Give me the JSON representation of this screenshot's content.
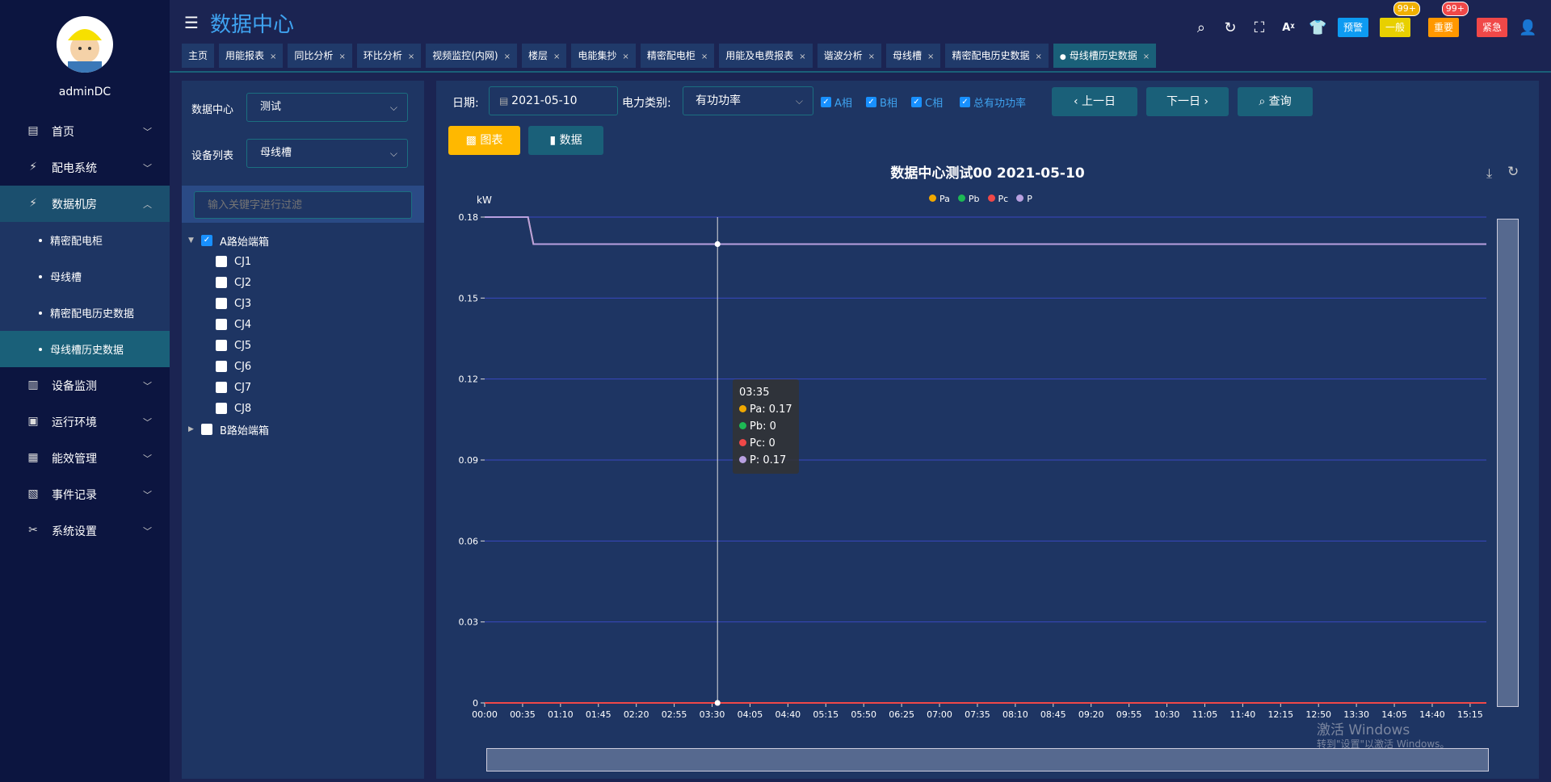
{
  "sidebar": {
    "username": "adminDC",
    "items": [
      {
        "label": "首页",
        "icon": "monitor-icon"
      },
      {
        "label": "配电系统",
        "icon": "lightning-icon"
      },
      {
        "label": "数据机房",
        "icon": "lightning-icon",
        "open": true,
        "children": [
          {
            "label": "精密配电柜"
          },
          {
            "label": "母线槽"
          },
          {
            "label": "精密配电历史数据"
          },
          {
            "label": "母线槽历史数据",
            "active": true
          }
        ]
      },
      {
        "label": "设备监测",
        "icon": "bar-chart-icon"
      },
      {
        "label": "运行环境",
        "icon": "camera-icon"
      },
      {
        "label": "能效管理",
        "icon": "factory-icon"
      },
      {
        "label": "事件记录",
        "icon": "building-icon"
      },
      {
        "label": "系统设置",
        "icon": "tools-icon"
      }
    ]
  },
  "header": {
    "title": "数据中心",
    "alerts": [
      {
        "label": "预警",
        "color": "#0d9bf2"
      },
      {
        "label": "一般",
        "color": "#e8d000",
        "count": "99+",
        "count_color": "#f0b000"
      },
      {
        "label": "重要",
        "color": "#ff9800",
        "count": "99+",
        "count_color": "#f04848"
      },
      {
        "label": "紧急",
        "color": "#f04848"
      }
    ]
  },
  "tabs": [
    "主页",
    "用能报表",
    "同比分析",
    "环比分析",
    "视频监控(内网)",
    "楼层",
    "电能集抄",
    "精密配电柜",
    "用能及电费报表",
    "谐波分析",
    "母线槽",
    "精密配电历史数据",
    "母线槽历史数据"
  ],
  "active_tab": "母线槽历史数据",
  "left": {
    "dc_label": "数据中心",
    "dc_value": "测试",
    "dev_label": "设备列表",
    "dev_value": "母线槽",
    "filter_placeholder": "输入关键字进行过滤",
    "tree": [
      {
        "label": "A路始端箱",
        "checked": true,
        "expanded": true,
        "children": [
          "CJ1",
          "CJ2",
          "CJ3",
          "CJ4",
          "CJ5",
          "CJ6",
          "CJ7",
          "CJ8"
        ]
      },
      {
        "label": "B路始端箱",
        "checked": false,
        "expanded": false
      }
    ]
  },
  "toolbar": {
    "date_label": "日期:",
    "date_value": "2021-05-10",
    "type_label": "电力类别:",
    "type_value": "有功功率",
    "checks": [
      "A相",
      "B相",
      "C相",
      "总有功功率"
    ],
    "prev": "上一日",
    "next": "下一日",
    "query": "查询",
    "chart_btn": "图表",
    "data_btn": "数据"
  },
  "chart_data": {
    "type": "line",
    "title": "数据中心测试00  2021-05-10",
    "ylabel": "kW",
    "ylim": [
      0,
      0.18
    ],
    "yticks": [
      "0",
      "0.03",
      "0.06",
      "0.09",
      "0.12",
      "0.15",
      "0.18"
    ],
    "xticks": [
      "00:00",
      "00:35",
      "01:10",
      "01:45",
      "02:20",
      "02:55",
      "03:30",
      "04:05",
      "04:40",
      "05:15",
      "05:50",
      "06:25",
      "07:00",
      "07:35",
      "08:10",
      "08:45",
      "09:20",
      "09:55",
      "10:30",
      "11:05",
      "11:40",
      "12:15",
      "12:50",
      "13:30",
      "14:05",
      "14:40",
      "15:15"
    ],
    "x_step_minutes": 5,
    "points": 186,
    "grid": true,
    "legend": "top-center",
    "series": [
      {
        "name": "Pa",
        "color": "#f0a800",
        "runs": [
          {
            "value": 0.18,
            "count": 9
          },
          {
            "value": 0.17,
            "count": 177
          }
        ]
      },
      {
        "name": "Pb",
        "color": "#1db954",
        "runs": [
          {
            "value": 0,
            "count": 186
          }
        ]
      },
      {
        "name": "Pc",
        "color": "#f04848",
        "runs": [
          {
            "value": 0,
            "count": 186
          }
        ]
      },
      {
        "name": "P",
        "color": "#b8a0e0",
        "runs": [
          {
            "value": 0.18,
            "count": 9
          },
          {
            "value": 0.17,
            "count": 177
          }
        ]
      }
    ],
    "tooltip": {
      "time": "03:35",
      "rows": [
        "Pa: 0.17",
        "Pb: 0",
        "Pc: 0",
        "P: 0.17"
      ]
    }
  },
  "watermark": {
    "line1": "激活 Windows",
    "line2": "转到\"设置\"以激活 Windows。"
  }
}
